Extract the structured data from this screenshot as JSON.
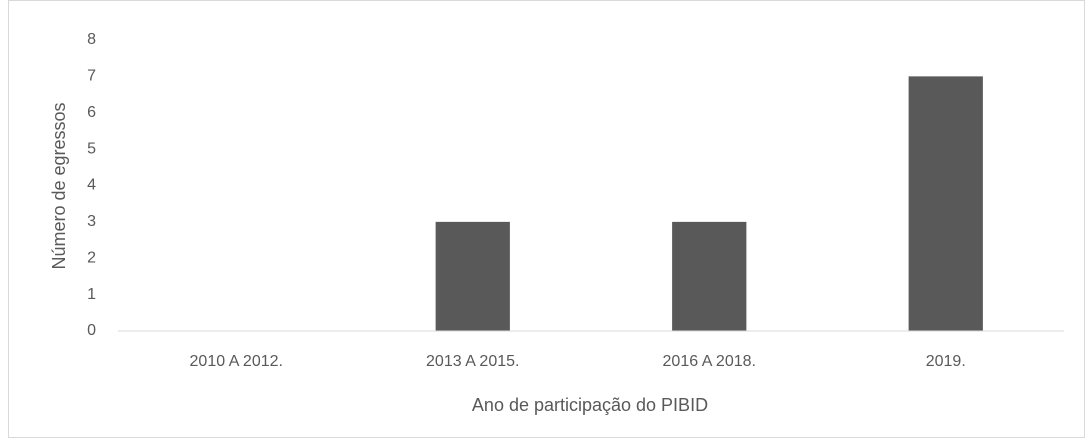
{
  "chart_data": {
    "type": "bar",
    "x_label": "Ano de participação do PIBID",
    "y_label": "Número de egressos",
    "categories": [
      "2010 A 2012.",
      "2013 A 2015.",
      "2016 A 2018.",
      "2019."
    ],
    "values": [
      0,
      3,
      3,
      7
    ],
    "color": "#595959",
    "ylim": [
      0,
      8
    ],
    "yticks": [
      0,
      1,
      2,
      3,
      4,
      5,
      6,
      7,
      8
    ],
    "grid": false
  }
}
